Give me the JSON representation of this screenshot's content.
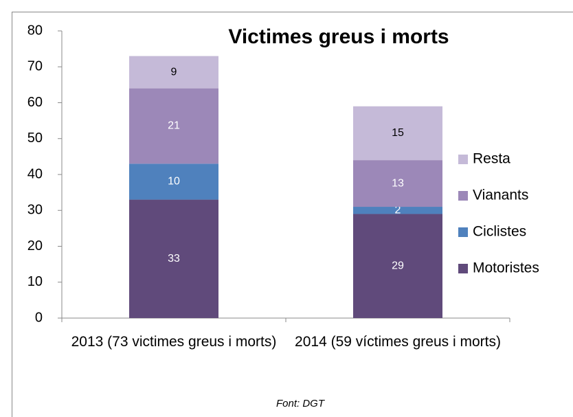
{
  "chart_data": {
    "type": "bar",
    "stacked": true,
    "title": "Victimes greus i morts",
    "categories": [
      "2013 (73 victimes greus i morts)",
      "2014 (59 víctimes greus i morts)"
    ],
    "series": [
      {
        "name": "Motoristes",
        "color": "#604a7b",
        "label_color": "#ffffff",
        "values": [
          33,
          29
        ]
      },
      {
        "name": "Ciclistes",
        "color": "#4f81bd",
        "label_color": "#ffffff",
        "values": [
          10,
          2
        ]
      },
      {
        "name": "Vianants",
        "color": "#9c88b8",
        "label_color": "#ffffff",
        "values": [
          21,
          13
        ]
      },
      {
        "name": "Resta",
        "color": "#c5bad8",
        "label_color": "#000000",
        "values": [
          9,
          15
        ]
      }
    ],
    "ylim": [
      0,
      80
    ],
    "yticks": [
      0,
      10,
      20,
      30,
      40,
      50,
      60,
      70,
      80
    ],
    "source": "Font: DGT",
    "legend": "right"
  }
}
